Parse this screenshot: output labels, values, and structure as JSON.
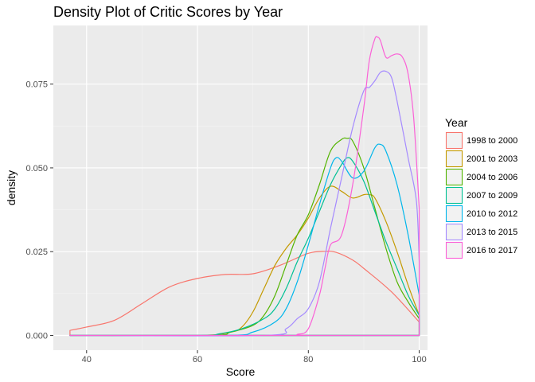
{
  "chart_data": {
    "type": "area",
    "title": "Density Plot of Critic Scores by Year",
    "xlabel": "Score",
    "ylabel": "density",
    "xlim": [
      34,
      101.5
    ],
    "ylim": [
      -0.0044,
      0.0925
    ],
    "x_ticks": [
      40,
      60,
      80,
      100
    ],
    "y_ticks": [
      0.0,
      0.025,
      0.05,
      0.075
    ],
    "y_tick_labels": [
      "0.000",
      "0.025",
      "0.050",
      "0.075"
    ],
    "grid": true,
    "legend_title": "Year",
    "legend_position": "right",
    "series": [
      {
        "name": "1998 to 2000",
        "color": "#F8766D",
        "x": [
          37,
          40,
          45,
          50,
          55,
          60,
          65,
          70,
          75,
          80,
          83,
          85,
          88,
          90,
          95,
          100
        ],
        "y": [
          0.0015,
          0.0025,
          0.0045,
          0.0095,
          0.0145,
          0.017,
          0.0182,
          0.0184,
          0.021,
          0.0245,
          0.0251,
          0.0248,
          0.0225,
          0.02,
          0.013,
          0.004
        ]
      },
      {
        "name": "2001 to 2003",
        "color": "#C49A00",
        "x": [
          37,
          60,
          66,
          68,
          70,
          72,
          74,
          76,
          78,
          80,
          82,
          84,
          86,
          88,
          90,
          91,
          92,
          94,
          96,
          98,
          100
        ],
        "y": [
          0.0,
          0.0,
          0.001,
          0.0025,
          0.007,
          0.014,
          0.021,
          0.026,
          0.03,
          0.035,
          0.041,
          0.0445,
          0.043,
          0.041,
          0.042,
          0.042,
          0.041,
          0.034,
          0.025,
          0.015,
          0.006
        ]
      },
      {
        "name": "2004 to 2006",
        "color": "#53B400",
        "x": [
          37,
          62,
          66,
          70,
          72,
          74,
          76,
          78,
          80,
          82,
          84,
          86,
          87,
          88,
          90,
          92,
          94,
          96,
          98,
          100
        ],
        "y": [
          0.0,
          0.0,
          0.001,
          0.003,
          0.006,
          0.012,
          0.021,
          0.03,
          0.036,
          0.045,
          0.055,
          0.0585,
          0.0588,
          0.058,
          0.05,
          0.038,
          0.026,
          0.016,
          0.01,
          0.005
        ]
      },
      {
        "name": "2007 to 2009",
        "color": "#00C094",
        "x": [
          37,
          60,
          64,
          68,
          72,
          74,
          76,
          78,
          80,
          82,
          84,
          86,
          87,
          88,
          90,
          92,
          94,
          96,
          98,
          100
        ],
        "y": [
          0.0,
          0.0,
          0.0005,
          0.002,
          0.005,
          0.008,
          0.014,
          0.022,
          0.029,
          0.037,
          0.045,
          0.051,
          0.053,
          0.052,
          0.046,
          0.037,
          0.028,
          0.02,
          0.012,
          0.006
        ]
      },
      {
        "name": "2010 to 2012",
        "color": "#00B6EB",
        "x": [
          37,
          65,
          70,
          74,
          76,
          78,
          80,
          82,
          84,
          85,
          86,
          88,
          90,
          92,
          93,
          94,
          96,
          98,
          100
        ],
        "y": [
          0.0,
          0.0,
          0.001,
          0.004,
          0.008,
          0.016,
          0.027,
          0.039,
          0.05,
          0.053,
          0.052,
          0.047,
          0.049,
          0.056,
          0.057,
          0.055,
          0.045,
          0.03,
          0.012
        ]
      },
      {
        "name": "2013 to 2015",
        "color": "#A58AFF",
        "x": [
          37,
          72,
          76,
          78,
          80,
          82,
          84,
          86,
          88,
          90,
          91,
          92,
          93,
          94,
          95,
          96,
          98,
          99.5,
          100
        ],
        "y": [
          0.0,
          0.0,
          0.002,
          0.005,
          0.008,
          0.016,
          0.032,
          0.047,
          0.062,
          0.073,
          0.074,
          0.076,
          0.0785,
          0.0788,
          0.077,
          0.07,
          0.053,
          0.04,
          0.022
        ]
      },
      {
        "name": "2016 to 2017",
        "color": "#FB61D7",
        "x": [
          37,
          76,
          78,
          80,
          82,
          83,
          84,
          86,
          88,
          90,
          91,
          92,
          92.5,
          93,
          94,
          95,
          96,
          97,
          98,
          99,
          100
        ],
        "y": [
          0.0,
          0.0,
          0.0003,
          0.002,
          0.012,
          0.02,
          0.027,
          0.03,
          0.045,
          0.068,
          0.082,
          0.0885,
          0.089,
          0.088,
          0.083,
          0.0835,
          0.084,
          0.083,
          0.078,
          0.065,
          0.038
        ]
      }
    ]
  }
}
